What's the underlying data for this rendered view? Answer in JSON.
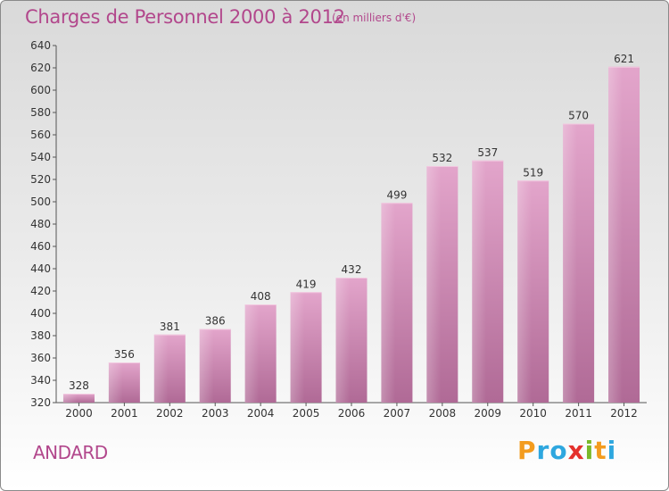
{
  "header": {
    "title": "Charges de Personnel 2000 à 2012",
    "subtitle": "(en milliers d'€)"
  },
  "footer": {
    "commune": "ANDARD",
    "logo_letters": [
      "P",
      "r",
      "o",
      "x",
      "i",
      "t",
      "i"
    ],
    "logo_colors": [
      "#f39c1f",
      "#2ea7df",
      "#2ea7df",
      "#e4312c",
      "#7ab929",
      "#f39c1f",
      "#2ea7df"
    ]
  },
  "chart_data": {
    "type": "bar",
    "title": "Charges de Personnel 2000 à 2012",
    "subtitle": "(en milliers d'€)",
    "categories": [
      "2000",
      "2001",
      "2002",
      "2003",
      "2004",
      "2005",
      "2006",
      "2007",
      "2008",
      "2009",
      "2010",
      "2011",
      "2012"
    ],
    "values": [
      328,
      356,
      381,
      386,
      408,
      419,
      432,
      499,
      532,
      537,
      519,
      570,
      621
    ],
    "ylim": [
      320,
      640
    ],
    "yticks": [
      320,
      340,
      360,
      380,
      400,
      420,
      440,
      460,
      480,
      500,
      520,
      540,
      560,
      580,
      600,
      620,
      640
    ],
    "grid": false,
    "bar_color": "#d98bbb",
    "bar_color_dark": "#b56e9a"
  }
}
